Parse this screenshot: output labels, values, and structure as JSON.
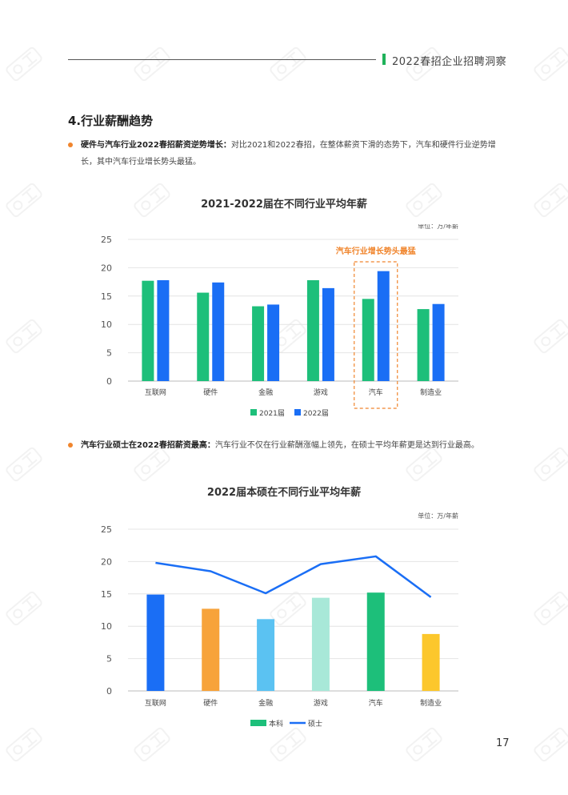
{
  "header": {
    "title": "2022春招企业招聘洞察"
  },
  "section": {
    "title": "4.行业薪酬趋势"
  },
  "bullets": [
    {
      "bold": "硬件与汽车行业2022春招薪资逆势增长：",
      "text": "对比2021和2022春招，在整体薪资下滑的态势下，汽车和硬件行业逆势增长，其中汽车行业增长势头最猛。"
    },
    {
      "bold": "汽车行业硕士在2022春招薪资最高：",
      "text": "汽车行业不仅在行业薪酬涨幅上领先，在硕士平均年薪更是达到行业最高。"
    }
  ],
  "chart_data": [
    {
      "type": "bar",
      "title": "2021-2022届在不同行业平均年薪",
      "unit_label": "单位：万/年薪",
      "categories": [
        "互联网",
        "硬件",
        "金融",
        "游戏",
        "汽车",
        "制造业"
      ],
      "series": [
        {
          "name": "2021届",
          "color": "#1dbf7a",
          "values": [
            17.7,
            15.6,
            13.2,
            17.8,
            14.5,
            12.7
          ]
        },
        {
          "name": "2022届",
          "color": "#1a6ef5",
          "values": [
            17.8,
            17.4,
            13.5,
            16.4,
            19.4,
            13.6
          ]
        }
      ],
      "ylim": [
        0,
        25
      ],
      "yticks": [
        0,
        5,
        10,
        15,
        20,
        25
      ],
      "grid": true,
      "legend": "bottom",
      "annotation": {
        "text": "汽车行业增长势头最猛",
        "color": "#f0852d",
        "category": "汽车"
      }
    },
    {
      "type": "bar",
      "title": "2022届本硕在不同行业平均年薪",
      "unit_label": "单位：万/年薪",
      "categories": [
        "互联网",
        "硬件",
        "金融",
        "游戏",
        "汽车",
        "制造业"
      ],
      "series": [
        {
          "name": "本科",
          "kind": "bar",
          "color": "#1dbf7a",
          "values": [
            14.9,
            12.7,
            11.1,
            14.4,
            15.2,
            8.8
          ],
          "bar_colors": [
            "#1a6ef5",
            "#f7a33a",
            "#5bc2f2",
            "#a8e8d8",
            "#1dbf7a",
            "#fcc72c"
          ]
        },
        {
          "name": "硕士",
          "kind": "line",
          "color": "#1a6ef5",
          "values": [
            19.8,
            18.5,
            15.1,
            19.6,
            20.8,
            14.5
          ]
        }
      ],
      "ylim": [
        0,
        25
      ],
      "yticks": [
        0,
        5,
        10,
        15,
        20,
        25
      ],
      "grid": true,
      "legend": "bottom"
    }
  ],
  "page": {
    "number": "17"
  }
}
